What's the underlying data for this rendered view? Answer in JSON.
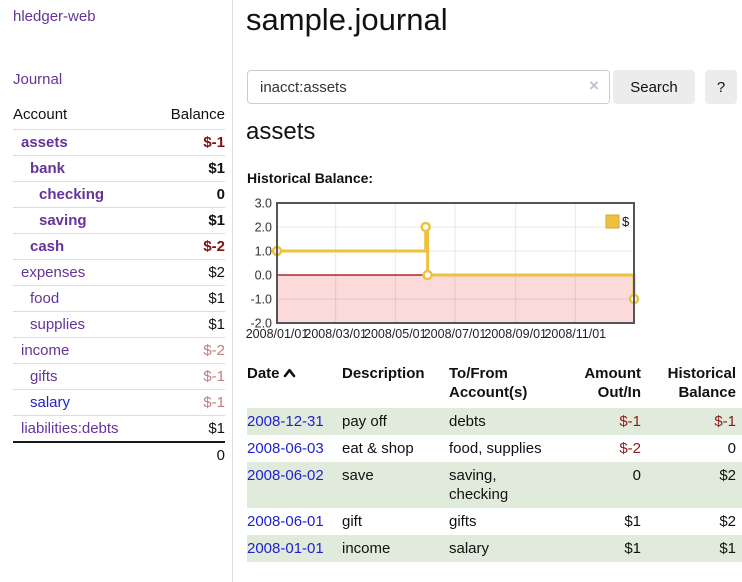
{
  "sidebar": {
    "brand": "hledger-web",
    "journal_link": "Journal",
    "columns": {
      "account": "Account",
      "balance": "Balance"
    },
    "accounts": [
      {
        "name": "assets",
        "depth": 1,
        "bold": true,
        "link": "purple",
        "balance": "$-1",
        "balance_class": "neg"
      },
      {
        "name": "bank",
        "depth": 2,
        "bold": true,
        "link": "purple",
        "balance": "$1",
        "balance_class": "pos"
      },
      {
        "name": "checking",
        "depth": 3,
        "bold": true,
        "link": "purple",
        "balance": "0",
        "balance_class": "pos"
      },
      {
        "name": "saving",
        "depth": 3,
        "bold": true,
        "link": "purple",
        "balance": "$1",
        "balance_class": "pos"
      },
      {
        "name": "cash",
        "depth": 2,
        "bold": true,
        "link": "purple",
        "balance": "$-2",
        "balance_class": "neg"
      },
      {
        "name": "expenses",
        "depth": 1,
        "bold": false,
        "link": "purple",
        "balance": "$2",
        "balance_class": "pos"
      },
      {
        "name": "food",
        "depth": 2,
        "bold": false,
        "link": "purple",
        "balance": "$1",
        "balance_class": "pos"
      },
      {
        "name": "supplies",
        "depth": 2,
        "bold": false,
        "link": "purple",
        "balance": "$1",
        "balance_class": "pos"
      },
      {
        "name": "income",
        "depth": 1,
        "bold": false,
        "link": "purple",
        "balance": "$-2",
        "balance_class": "neg-soft"
      },
      {
        "name": "gifts",
        "depth": 2,
        "bold": false,
        "link": "purple",
        "balance": "$-1",
        "balance_class": "neg-soft"
      },
      {
        "name": "salary",
        "depth": 2,
        "bold": false,
        "link": "blue",
        "balance": "$-1",
        "balance_class": "neg-soft"
      },
      {
        "name": "liabilities:debts",
        "depth": 1,
        "bold": false,
        "link": "purple",
        "balance": "$1",
        "balance_class": "pos"
      }
    ],
    "total": "0"
  },
  "main": {
    "title": "sample.journal",
    "search": {
      "value": "inacct:assets",
      "clear": "×",
      "search_button": "Search",
      "help_button": "?"
    },
    "heading": "assets",
    "chart_label": "Historical Balance:"
  },
  "chart_data": {
    "type": "line",
    "title": "Historical Balance:",
    "series": [
      {
        "name": "$",
        "step": true,
        "points": [
          {
            "date": "2008/01/01",
            "value": 1
          },
          {
            "date": "2008/06/01",
            "value": 2
          },
          {
            "date": "2008/06/03",
            "value": 0
          },
          {
            "date": "2008/12/31",
            "value": -1
          }
        ]
      }
    ],
    "x_range": [
      "2008/01/01",
      "2008/12/31"
    ],
    "x_ticks": [
      "2008/01/01",
      "2008/03/01",
      "2008/05/01",
      "2008/07/01",
      "2008/09/01",
      "2008/11/01"
    ],
    "y_ticks": [
      3.0,
      2.0,
      1.0,
      0.0,
      -1.0,
      -2.0
    ],
    "ylim": [
      -2,
      3
    ],
    "grid": true,
    "legend_position": "top-right"
  },
  "register": {
    "columns": {
      "date": "Date",
      "description": "Description",
      "accounts": "To/From Account(s)",
      "amount": "Amount Out/In",
      "balance": "Historical Balance"
    },
    "sort": {
      "column": "date",
      "direction": "ascending"
    },
    "rows": [
      {
        "date": "2008-12-31",
        "description": "pay off",
        "accounts": "debts",
        "amount": "$-1",
        "amount_negative": true,
        "balance": "$-1",
        "balance_negative": true
      },
      {
        "date": "2008-06-03",
        "description": "eat & shop",
        "accounts": "food, supplies",
        "amount": "$-2",
        "amount_negative": true,
        "balance": "0",
        "balance_negative": false
      },
      {
        "date": "2008-06-02",
        "description": "save",
        "accounts": "saving, checking",
        "amount": "0",
        "amount_negative": false,
        "balance": "$2",
        "balance_negative": false
      },
      {
        "date": "2008-06-01",
        "description": "gift",
        "accounts": "gifts",
        "amount": "$1",
        "amount_negative": false,
        "balance": "$2",
        "balance_negative": false
      },
      {
        "date": "2008-01-01",
        "description": "income",
        "accounts": "salary",
        "amount": "$1",
        "amount_negative": false,
        "balance": "$1",
        "balance_negative": false
      }
    ]
  },
  "colors": {
    "accent_purple": "#663399",
    "link_blue": "#2222cc",
    "negative_strong": "#7f1111",
    "negative_soft": "#c07e7e",
    "row_green": "#e0ebdb",
    "chart_line": "#edc240",
    "chart_negative_region": "#fbdada",
    "chart_zero_line": "#a40000",
    "chart_border": "#555555"
  }
}
